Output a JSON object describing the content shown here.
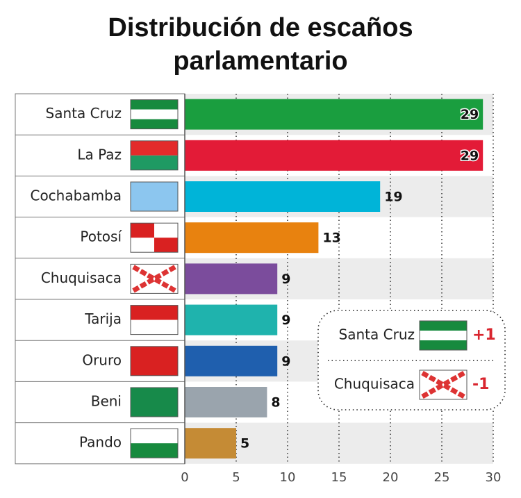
{
  "chart_data": {
    "type": "bar",
    "orientation": "horizontal",
    "title": "Distribución de escaños",
    "subtitle": "parlamentario",
    "categories": [
      "Santa Cruz",
      "La Paz",
      "Cochabamba",
      "Potosí",
      "Chuquisaca",
      "Tarija",
      "Oruro",
      "Beni",
      "Pando"
    ],
    "values": [
      29,
      29,
      19,
      13,
      9,
      9,
      9,
      8,
      5
    ],
    "colors": [
      "#1a9e3f",
      "#e31b37",
      "#00b4d8",
      "#e8820f",
      "#7b4c9c",
      "#1fb3ad",
      "#1f5fae",
      "#9aa4ad",
      "#c58b35"
    ],
    "xlim": [
      0,
      30
    ],
    "xticks": [
      0,
      5,
      10,
      15,
      20,
      25,
      30
    ],
    "grid": true,
    "annotations": [
      {
        "label": "Santa Cruz",
        "change": "+1"
      },
      {
        "label": "Chuquisaca",
        "change": "-1"
      }
    ]
  }
}
